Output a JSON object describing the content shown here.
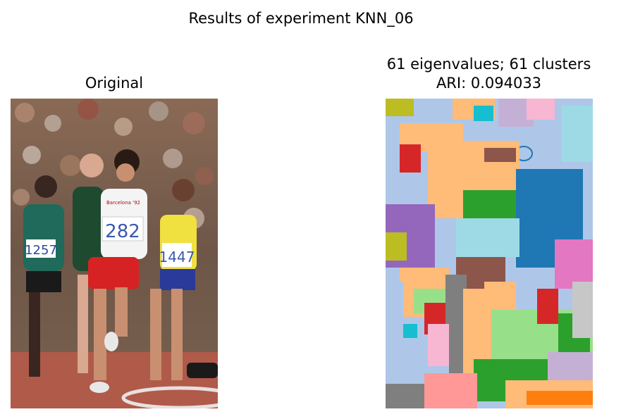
{
  "figure": {
    "suptitle": "Results of experiment KNN_06",
    "left_panel": {
      "title": "Original",
      "bib_numbers": [
        "1257",
        "282",
        "1447"
      ],
      "shorts_text": "Barcelona '92"
    },
    "right_panel": {
      "title_line1": "61 eigenvalues; 61 clusters",
      "title_line2": "ARI: 0.094033"
    }
  },
  "colors": {
    "track": "#b05a4a",
    "white": "#ffffff",
    "red": "#d62728",
    "green": "#2ca02c",
    "blue": "#1f77b4",
    "orange": "#ff7f0e",
    "purple": "#9467bd",
    "brown": "#8c564b",
    "pink": "#e377c2",
    "gray": "#7f7f7f",
    "olive": "#bcbd22",
    "cyan": "#17becf",
    "light_blue": "#aec7e8",
    "light_orange": "#ffbb78",
    "light_green": "#98df8a",
    "light_pink": "#f7b6d2",
    "light_cyan": "#9edae5"
  }
}
